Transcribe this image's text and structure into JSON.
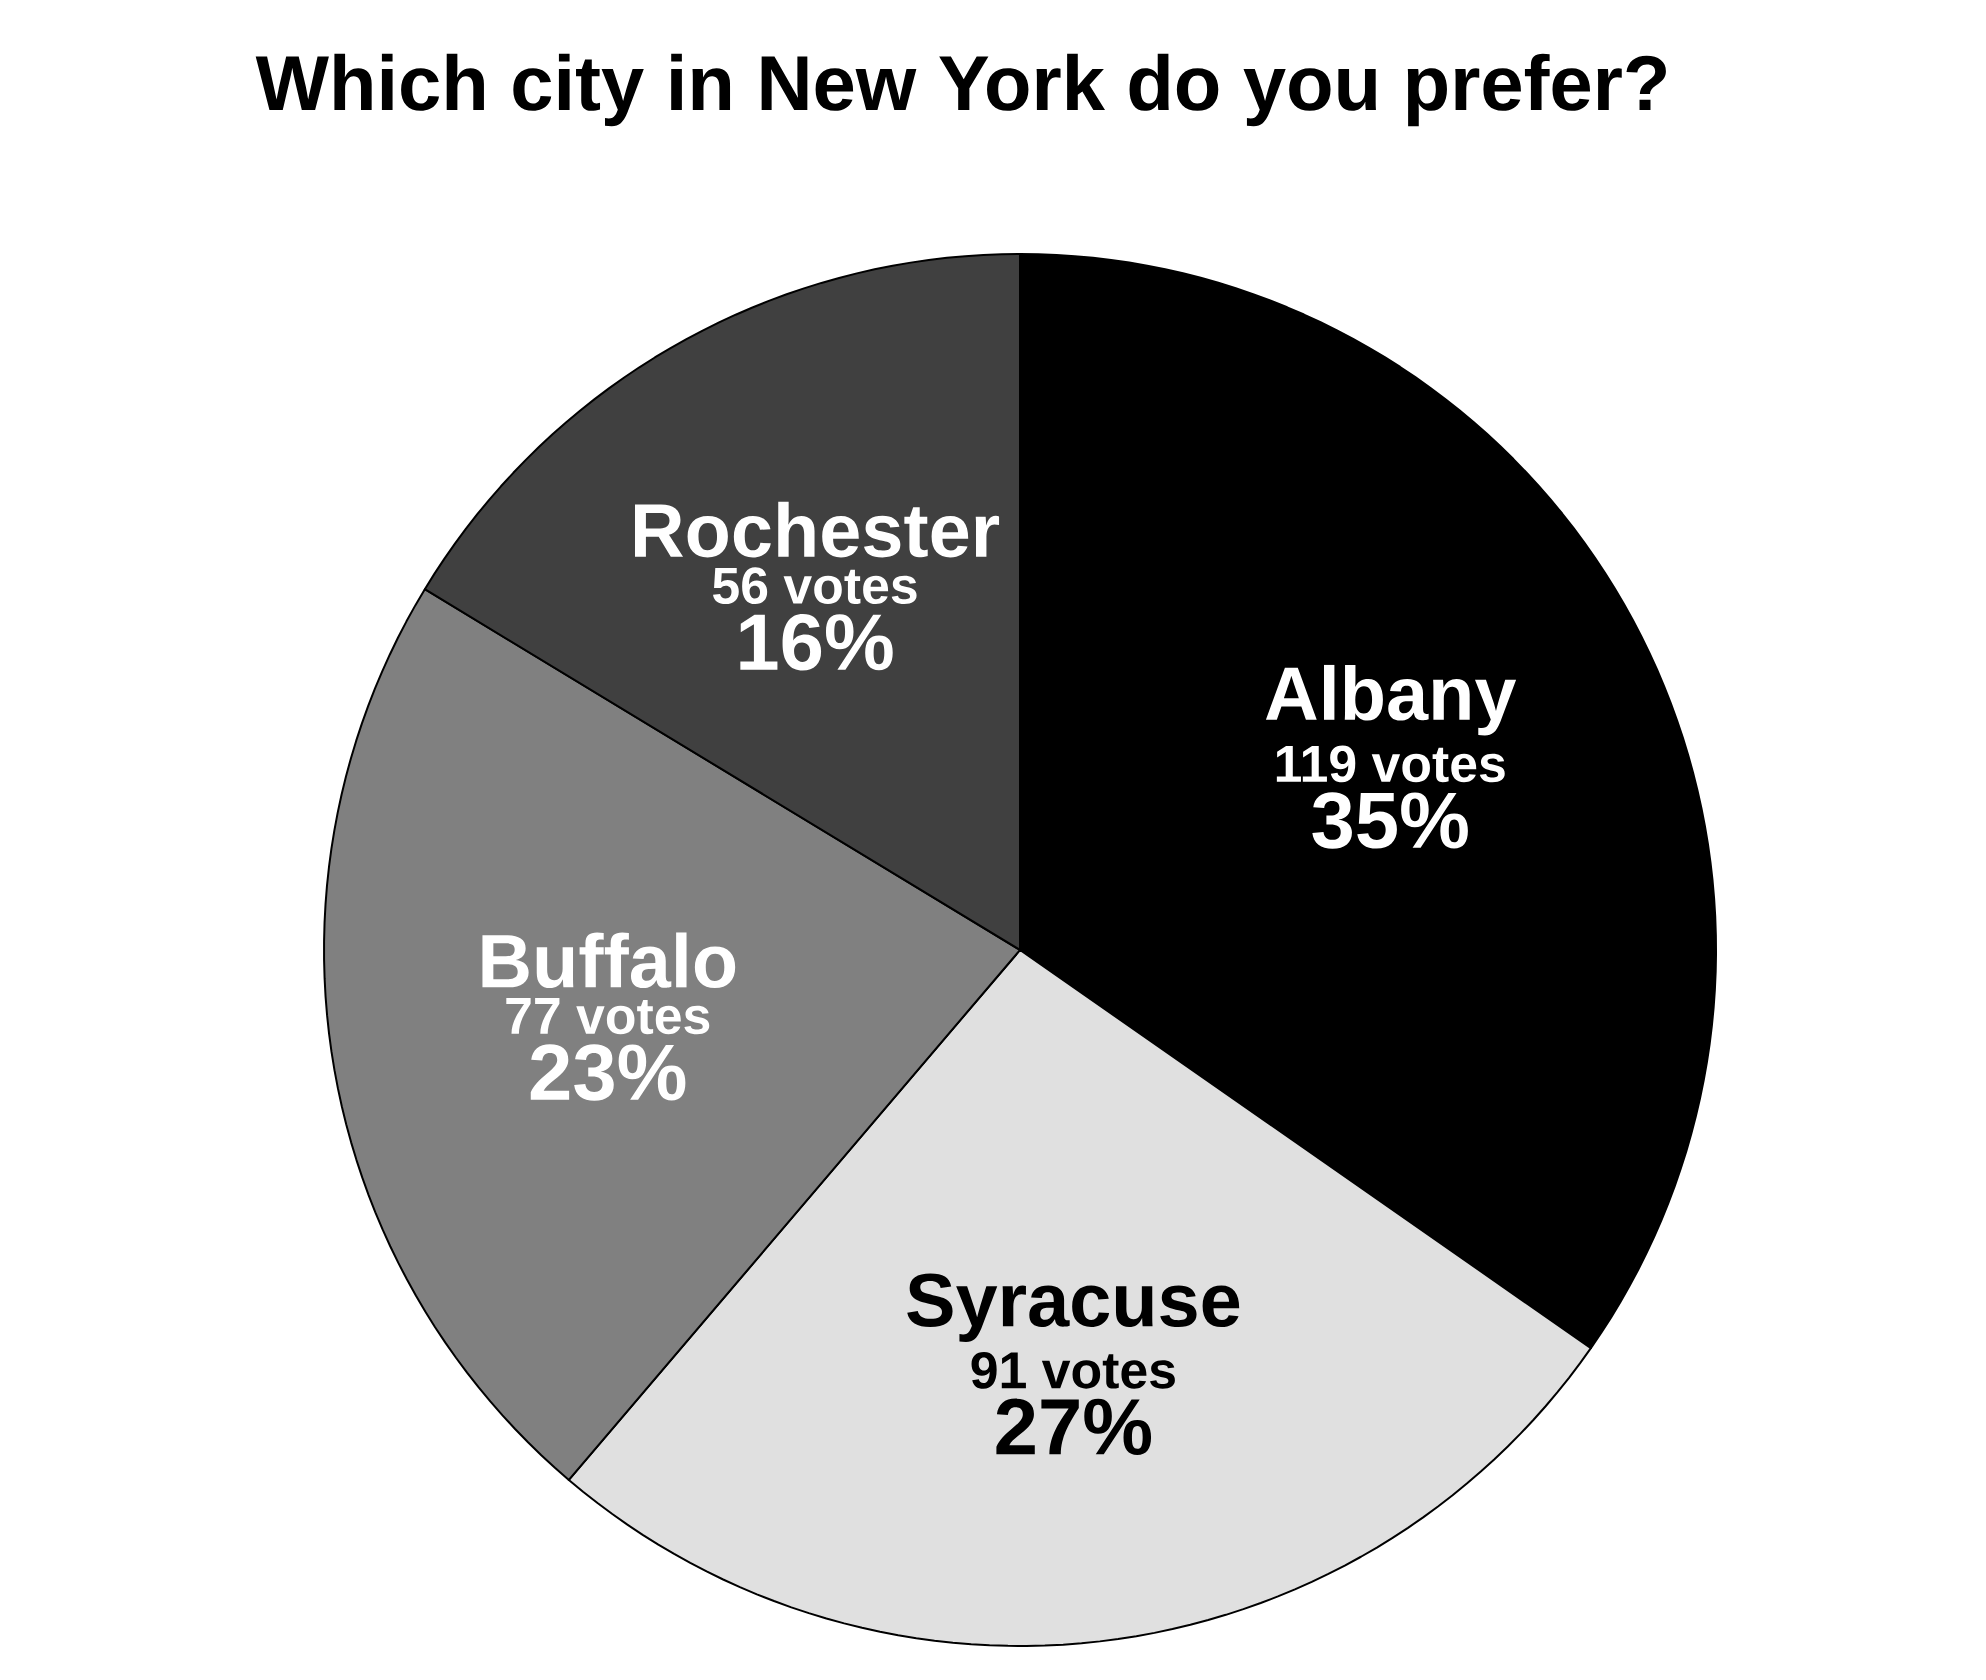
{
  "chart_data": {
    "type": "pie",
    "title": "Which city in New York do you prefer?",
    "categories": [
      "Albany",
      "Syracuse",
      "Buffalo",
      "Rochester"
    ],
    "values": [
      119,
      91,
      77,
      56
    ],
    "colors": [
      "#000000",
      "#e0e0e0",
      "#808080",
      "#404040"
    ],
    "value_labels": [
      "119 votes",
      "91 votes",
      "77 votes",
      "56 votes"
    ],
    "annotations": [
      "35%",
      "27%",
      "23%",
      "16%"
    ]
  }
}
